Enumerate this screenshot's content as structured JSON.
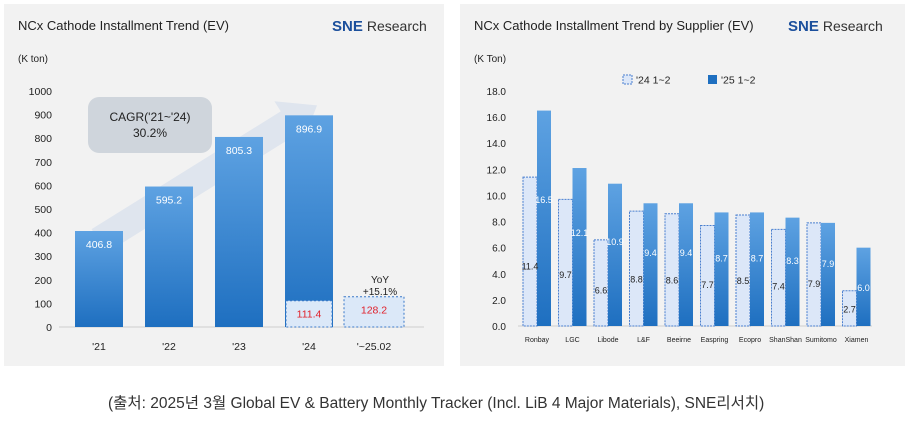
{
  "chart_data": [
    {
      "type": "bar",
      "title": "NCx Cathode Installment Trend (EV)",
      "ylabel": "(K ton)",
      "ylim": [
        0,
        1000
      ],
      "yticks": [
        0,
        100,
        200,
        300,
        400,
        500,
        600,
        700,
        800,
        900,
        1000
      ],
      "categories": [
        "'21",
        "'22",
        "'23",
        "'24",
        "'~25.02"
      ],
      "values": [
        406.8,
        595.2,
        805.3,
        896.9,
        128.2
      ],
      "value_labels": [
        "406.8",
        "595.2",
        "805.3",
        "896.9",
        "128.2"
      ],
      "inset": {
        "category": "'24",
        "value": 111.4,
        "label": "111.4"
      },
      "annotations": {
        "cagr_label": "CAGR('21~'24)",
        "cagr_value": "30.2%",
        "yoy_label": "YoY",
        "yoy_value": "+15.1%"
      },
      "logo_main": "SNE",
      "logo_sub": "Research",
      "colors": {
        "bar": "#1e6fc0",
        "bar_light": "#5ea2e2",
        "highlight_value": "#e0202a",
        "inset_fill": "#dbe8f8",
        "inset_border": "#3a78c8"
      }
    },
    {
      "type": "bar",
      "title": "NCx Cathode Installment Trend by Supplier (EV)",
      "ylabel": "(K Ton)",
      "ylim": [
        0,
        18
      ],
      "yticks": [
        0.0,
        2.0,
        4.0,
        6.0,
        8.0,
        10.0,
        12.0,
        14.0,
        16.0,
        18.0
      ],
      "ytick_labels": [
        "0.0",
        "2.0",
        "4.0",
        "6.0",
        "8.0",
        "10.0",
        "12.0",
        "14.0",
        "16.0",
        "18.0"
      ],
      "categories": [
        "Ronbay",
        "LGC",
        "Libode",
        "L&F",
        "Beeirne",
        "Easpring",
        "Ecopro",
        "ShanShan",
        "Sumitomo",
        "Xiamen"
      ],
      "series": [
        {
          "name": "'24 1~2",
          "values": [
            11.4,
            9.7,
            6.6,
            8.8,
            8.6,
            7.7,
            8.5,
            7.4,
            7.9,
            2.7
          ],
          "labels": [
            "11.4",
            "9.7",
            "6.6",
            "8.8",
            "8.6",
            "7.7",
            "8.5",
            "7.4",
            "7.9",
            "2.7"
          ]
        },
        {
          "name": "'25 1~2",
          "values": [
            16.5,
            12.1,
            10.9,
            9.4,
            9.4,
            8.7,
            8.7,
            8.3,
            7.9,
            6.0
          ],
          "labels": [
            "16.5",
            "12.1",
            "10.9",
            "9.4",
            "9.4",
            "8.7",
            "8.7",
            "8.3",
            "7.9",
            "6.0"
          ]
        }
      ],
      "logo_main": "SNE",
      "logo_sub": "Research",
      "colors": {
        "series1_fill": "#dce7f8",
        "series1_border": "#4a7fcf",
        "series2": "#1e6fc0",
        "series2_light": "#5ea2e2"
      }
    }
  ],
  "caption": "(출처: 2025년  3월  Global EV & Battery Monthly Tracker (Incl. LiB 4 Major Materials), SNE리서치)"
}
